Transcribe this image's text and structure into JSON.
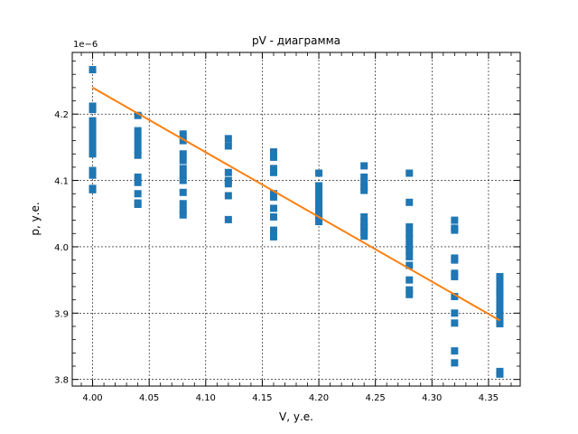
{
  "chart_data": {
    "type": "scatter",
    "title": "pV - диаграмма",
    "xlabel": "V, у.е.",
    "ylabel": "p, у.е.",
    "y_offset_label": "1e−6",
    "xlim": [
      3.982,
      4.378
    ],
    "ylim": [
      3.79,
      4.293
    ],
    "x_ticks": [
      4.0,
      4.05,
      4.1,
      4.15,
      4.2,
      4.25,
      4.3,
      4.35
    ],
    "x_tick_labels": [
      "4.00",
      "4.05",
      "4.10",
      "4.15",
      "4.20",
      "4.25",
      "4.30",
      "4.35"
    ],
    "y_ticks": [
      3.8,
      3.9,
      4.0,
      4.1,
      4.2
    ],
    "y_tick_labels": [
      "3.8",
      "3.9",
      "4.0",
      "4.1",
      "4.2"
    ],
    "grid": true,
    "colors": {
      "points": "#1f77b4",
      "fit": "#ff7f0e",
      "grid": "#000000"
    },
    "series": [
      {
        "kind": "points",
        "x": [
          4.0,
          4.0,
          4.0,
          4.0,
          4.0,
          4.0,
          4.0,
          4.0,
          4.0,
          4.0,
          4.0,
          4.0,
          4.0,
          4.04,
          4.04,
          4.04,
          4.04,
          4.04,
          4.04,
          4.04,
          4.04,
          4.04,
          4.04,
          4.04,
          4.08,
          4.08,
          4.08,
          4.08,
          4.08,
          4.08,
          4.08,
          4.08,
          4.08,
          4.08,
          4.08,
          4.12,
          4.12,
          4.12,
          4.12,
          4.12,
          4.12,
          4.12,
          4.16,
          4.16,
          4.16,
          4.16,
          4.16,
          4.16,
          4.16,
          4.16,
          4.16,
          4.16,
          4.2,
          4.2,
          4.2,
          4.2,
          4.2,
          4.2,
          4.2,
          4.2,
          4.2,
          4.2,
          4.2,
          4.24,
          4.24,
          4.24,
          4.24,
          4.24,
          4.24,
          4.24,
          4.24,
          4.24,
          4.24,
          4.24,
          4.28,
          4.28,
          4.28,
          4.28,
          4.28,
          4.28,
          4.28,
          4.28,
          4.28,
          4.28,
          4.28,
          4.28,
          4.32,
          4.32,
          4.32,
          4.32,
          4.32,
          4.32,
          4.32,
          4.32,
          4.32,
          4.32,
          4.32,
          4.32,
          4.36,
          4.36,
          4.36,
          4.36,
          4.36,
          4.36,
          4.36,
          4.36,
          4.36,
          4.36,
          4.36,
          4.36
        ],
        "y": [
          4.267,
          4.212,
          4.207,
          4.19,
          4.18,
          4.17,
          4.16,
          4.15,
          4.14,
          4.115,
          4.108,
          4.088,
          4.086,
          4.198,
          4.175,
          4.165,
          4.155,
          4.145,
          4.138,
          4.105,
          4.097,
          4.08,
          4.066,
          4.064,
          4.17,
          4.16,
          4.14,
          4.13,
          4.118,
          4.108,
          4.1,
          4.082,
          4.065,
          4.055,
          4.048,
          4.163,
          4.152,
          4.112,
          4.1,
          4.095,
          4.077,
          4.041,
          4.143,
          4.135,
          4.118,
          4.112,
          4.08,
          4.075,
          4.058,
          4.045,
          4.025,
          4.015,
          4.111,
          4.092,
          4.085,
          4.075,
          4.068,
          4.062,
          4.055,
          4.048,
          4.045,
          4.04,
          4.038,
          4.122,
          4.105,
          4.098,
          4.09,
          4.085,
          4.045,
          4.038,
          4.032,
          4.028,
          4.022,
          4.016,
          4.111,
          4.067,
          4.03,
          4.02,
          4.012,
          4.002,
          3.995,
          3.985,
          3.972,
          3.95,
          3.935,
          3.928,
          4.04,
          4.028,
          4.025,
          3.983,
          3.98,
          3.96,
          3.955,
          3.925,
          3.9,
          3.885,
          3.843,
          3.825,
          3.955,
          3.948,
          3.938,
          3.932,
          3.925,
          3.915,
          3.905,
          3.895,
          3.888,
          3.884,
          3.812,
          3.808
        ]
      },
      {
        "kind": "fit-line",
        "x": [
          4.0,
          4.36
        ],
        "y": [
          4.24,
          3.889
        ]
      }
    ]
  }
}
